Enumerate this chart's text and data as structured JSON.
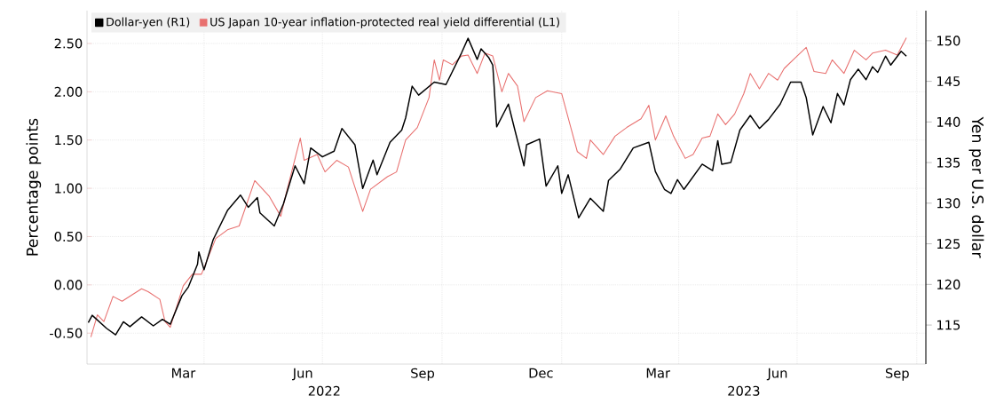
{
  "chart_data": {
    "type": "line",
    "ylabel": "Percentage points",
    "y2label": "Yen per U.S. dollar",
    "xlim": [
      "2022-01-01",
      "2023-10-08"
    ],
    "ylim": [
      -0.82,
      2.84
    ],
    "y2lim": [
      110.2,
      153.7
    ],
    "yticks": [
      {
        "value": -0.5,
        "label": "-0.50"
      },
      {
        "value": 0,
        "label": "0.00"
      },
      {
        "value": 0.5,
        "label": "0.50"
      },
      {
        "value": 1,
        "label": "1.00"
      },
      {
        "value": 1.5,
        "label": "1.50"
      },
      {
        "value": 2,
        "label": "2.00"
      },
      {
        "value": 2.5,
        "label": "2.50"
      }
    ],
    "y2ticks": [
      115,
      120,
      125,
      130,
      135,
      140,
      145,
      150
    ],
    "xticks": [
      {
        "value": "2022-04-01",
        "label": null
      },
      {
        "value": "2022-07-01",
        "label": null
      },
      {
        "value": "2022-10-01",
        "label": null
      },
      {
        "value": "2023-01-01",
        "label": null
      },
      {
        "value": "2023-04-01",
        "label": null
      },
      {
        "value": "2023-07-01",
        "label": null
      },
      {
        "value": "2023-10-01",
        "label": null
      },
      {
        "value": "2022-03-16",
        "label": "Mar"
      },
      {
        "value": "2022-06-16",
        "label": "Jun"
      },
      {
        "value": "2022-09-16",
        "label": "Sep"
      },
      {
        "value": "2022-12-16",
        "label": "Dec"
      },
      {
        "value": "2023-03-16",
        "label": "Mar"
      },
      {
        "value": "2023-06-16",
        "label": "Jun"
      },
      {
        "value": "2023-09-16",
        "label": "Sep"
      }
    ],
    "annotations": [
      "2022",
      "2023"
    ],
    "grid": true,
    "legend": "top left",
    "marker": "none",
    "line_style": "solid",
    "series": [
      {
        "name": "Dollar-yen (R1)",
        "color": "#000000",
        "axis": "y2",
        "x": [
          "2022-01-02",
          "2022-01-05",
          "2022-01-16",
          "2022-01-23",
          "2022-01-29",
          "2022-02-03",
          "2022-02-12",
          "2022-02-21",
          "2022-02-28",
          "2022-03-06",
          "2022-03-15",
          "2022-03-20",
          "2022-03-27",
          "2022-03-28",
          "2022-04-01",
          "2022-04-08",
          "2022-04-19",
          "2022-04-29",
          "2022-05-05",
          "2022-05-12",
          "2022-05-14",
          "2022-05-25",
          "2022-06-01",
          "2022-06-10",
          "2022-06-17",
          "2022-06-22",
          "2022-07-01",
          "2022-07-10",
          "2022-07-16",
          "2022-07-26",
          "2022-08-01",
          "2022-08-09",
          "2022-08-12",
          "2022-08-22",
          "2022-08-31",
          "2022-09-03",
          "2022-09-08",
          "2022-09-13",
          "2022-09-19",
          "2022-09-25",
          "2022-10-04",
          "2022-10-16",
          "2022-10-21",
          "2022-10-28",
          "2022-10-31",
          "2022-11-06",
          "2022-11-09",
          "2022-11-12",
          "2022-11-21",
          "2022-11-26",
          "2022-12-03",
          "2022-12-05",
          "2022-12-15",
          "2022-12-20",
          "2022-12-29",
          "2023-01-01",
          "2023-01-06",
          "2023-01-14",
          "2023-01-23",
          "2023-02-02",
          "2023-02-06",
          "2023-02-15",
          "2023-02-25",
          "2023-03-09",
          "2023-03-14",
          "2023-03-21",
          "2023-03-26",
          "2023-03-31",
          "2023-04-05",
          "2023-04-19",
          "2023-04-27",
          "2023-05-01",
          "2023-05-04",
          "2023-05-11",
          "2023-05-18",
          "2023-05-26",
          "2023-06-02",
          "2023-06-09",
          "2023-06-18",
          "2023-06-26",
          "2023-07-04",
          "2023-07-08",
          "2023-07-13",
          "2023-07-21",
          "2023-07-27",
          "2023-08-01",
          "2023-08-06",
          "2023-08-11",
          "2023-08-17",
          "2023-08-23",
          "2023-08-28",
          "2023-09-01",
          "2023-09-07",
          "2023-09-11",
          "2023-09-19",
          "2023-09-23"
        ],
        "values": [
          115.3,
          116.2,
          114.6,
          113.8,
          115.4,
          114.8,
          116.0,
          114.9,
          115.7,
          115.1,
          118.6,
          119.7,
          122.5,
          124.0,
          121.8,
          125.5,
          129.1,
          131.0,
          129.5,
          130.7,
          128.8,
          127.2,
          129.9,
          134.6,
          132.4,
          136.8,
          135.7,
          136.4,
          139.2,
          137.2,
          131.8,
          135.3,
          133.5,
          137.5,
          139.0,
          140.5,
          144.4,
          143.3,
          144.1,
          144.9,
          144.6,
          148.5,
          150.3,
          147.7,
          149.0,
          147.9,
          147.0,
          139.4,
          142.2,
          139.0,
          134.6,
          137.2,
          137.9,
          132.1,
          134.6,
          131.2,
          133.5,
          128.2,
          130.6,
          129.0,
          132.8,
          134.2,
          136.8,
          137.5,
          133.9,
          131.7,
          131.2,
          132.9,
          131.7,
          134.8,
          134.0,
          137.7,
          134.8,
          135.0,
          139.0,
          140.8,
          139.2,
          140.3,
          142.2,
          144.9,
          144.9,
          143.0,
          138.4,
          141.9,
          139.9,
          143.5,
          142.1,
          145.2,
          146.5,
          145.2,
          146.8,
          146.1,
          148.1,
          147.0,
          148.7,
          148.1
        ]
      },
      {
        "name": "US Japan 10-year inflation-protected real yield differential (L1)",
        "color": "#e8706f",
        "x": [
          "2022-01-04",
          "2022-01-09",
          "2022-01-14",
          "2022-01-21",
          "2022-01-28",
          "2022-02-05",
          "2022-02-12",
          "2022-02-17",
          "2022-02-26",
          "2022-03-02",
          "2022-03-06",
          "2022-03-16",
          "2022-03-23",
          "2022-03-30",
          "2022-04-10",
          "2022-04-19",
          "2022-04-28",
          "2022-05-10",
          "2022-05-21",
          "2022-05-30",
          "2022-06-03",
          "2022-06-14",
          "2022-06-17",
          "2022-06-27",
          "2022-07-03",
          "2022-07-12",
          "2022-07-21",
          "2022-08-01",
          "2022-08-07",
          "2022-08-20",
          "2022-08-27",
          "2022-09-03",
          "2022-09-12",
          "2022-09-21",
          "2022-09-25",
          "2022-09-29",
          "2022-10-02",
          "2022-10-09",
          "2022-10-16",
          "2022-10-21",
          "2022-10-28",
          "2022-11-03",
          "2022-11-09",
          "2022-11-16",
          "2022-11-21",
          "2022-11-28",
          "2022-12-03",
          "2022-12-12",
          "2022-12-21",
          "2023-01-01",
          "2023-01-08",
          "2023-01-13",
          "2023-01-20",
          "2023-01-23",
          "2023-02-02",
          "2023-02-11",
          "2023-02-20",
          "2023-03-03",
          "2023-03-09",
          "2023-03-14",
          "2023-03-22",
          "2023-03-28",
          "2023-04-06",
          "2023-04-12",
          "2023-04-19",
          "2023-04-25",
          "2023-05-01",
          "2023-05-07",
          "2023-05-14",
          "2023-05-21",
          "2023-05-26",
          "2023-06-02",
          "2023-06-09",
          "2023-06-16",
          "2023-06-21",
          "2023-07-01",
          "2023-07-08",
          "2023-07-14",
          "2023-07-23",
          "2023-07-28",
          "2023-08-06",
          "2023-08-14",
          "2023-08-23",
          "2023-08-28",
          "2023-09-07",
          "2023-09-16",
          "2023-09-23"
        ],
        "values": [
          -0.54,
          -0.31,
          -0.38,
          -0.12,
          -0.17,
          -0.1,
          -0.04,
          -0.07,
          -0.15,
          -0.38,
          -0.44,
          -0.01,
          0.11,
          0.11,
          0.48,
          0.57,
          0.61,
          1.08,
          0.92,
          0.71,
          0.94,
          1.52,
          1.29,
          1.35,
          1.17,
          1.29,
          1.22,
          0.76,
          0.99,
          1.12,
          1.17,
          1.5,
          1.63,
          1.94,
          2.33,
          2.12,
          2.33,
          2.28,
          2.37,
          2.38,
          2.19,
          2.4,
          2.37,
          2.0,
          2.19,
          2.06,
          1.69,
          1.94,
          2.01,
          1.98,
          1.63,
          1.38,
          1.31,
          1.5,
          1.35,
          1.54,
          1.63,
          1.72,
          1.86,
          1.5,
          1.75,
          1.54,
          1.31,
          1.35,
          1.52,
          1.54,
          1.77,
          1.66,
          1.77,
          1.98,
          2.19,
          2.03,
          2.19,
          2.12,
          2.24,
          2.37,
          2.46,
          2.21,
          2.19,
          2.33,
          2.19,
          2.43,
          2.33,
          2.4,
          2.43,
          2.38,
          2.56
        ]
      }
    ]
  }
}
